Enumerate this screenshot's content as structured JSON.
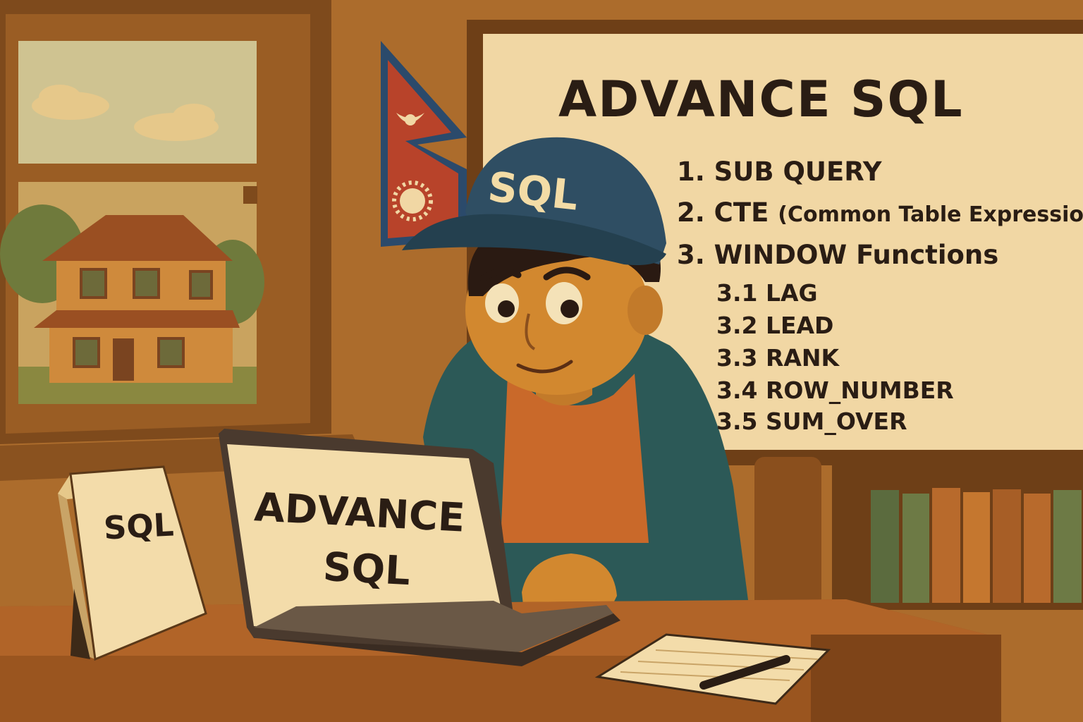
{
  "whiteboard": {
    "title": "ADVANCE SQL",
    "items": [
      {
        "main": "1. SUB QUERY",
        "extra": ""
      },
      {
        "main": "2. CTE ",
        "extra": "(Common Table Expression)"
      },
      {
        "main": "3. WINDOW Functions",
        "extra": ""
      }
    ],
    "subitems": [
      "3.1 LAG",
      "3.2 LEAD",
      "3.3 RANK",
      "3.4 ROW_NUMBER",
      "3.5 SUM_OVER"
    ]
  },
  "cap": {
    "label": "SQL"
  },
  "laptop": {
    "line1": "ADVANCE",
    "line2": "SQL"
  },
  "book": {
    "label": "SQL"
  },
  "colors": {
    "wall": "#a8672a",
    "board": "#f1d7a4",
    "cap": "#2f4e63",
    "hoodie": "#2c5957",
    "shirt": "#c9692a",
    "skin": "#d2882f",
    "flag_red": "#b8432a",
    "flag_blue": "#2b4a6b"
  }
}
